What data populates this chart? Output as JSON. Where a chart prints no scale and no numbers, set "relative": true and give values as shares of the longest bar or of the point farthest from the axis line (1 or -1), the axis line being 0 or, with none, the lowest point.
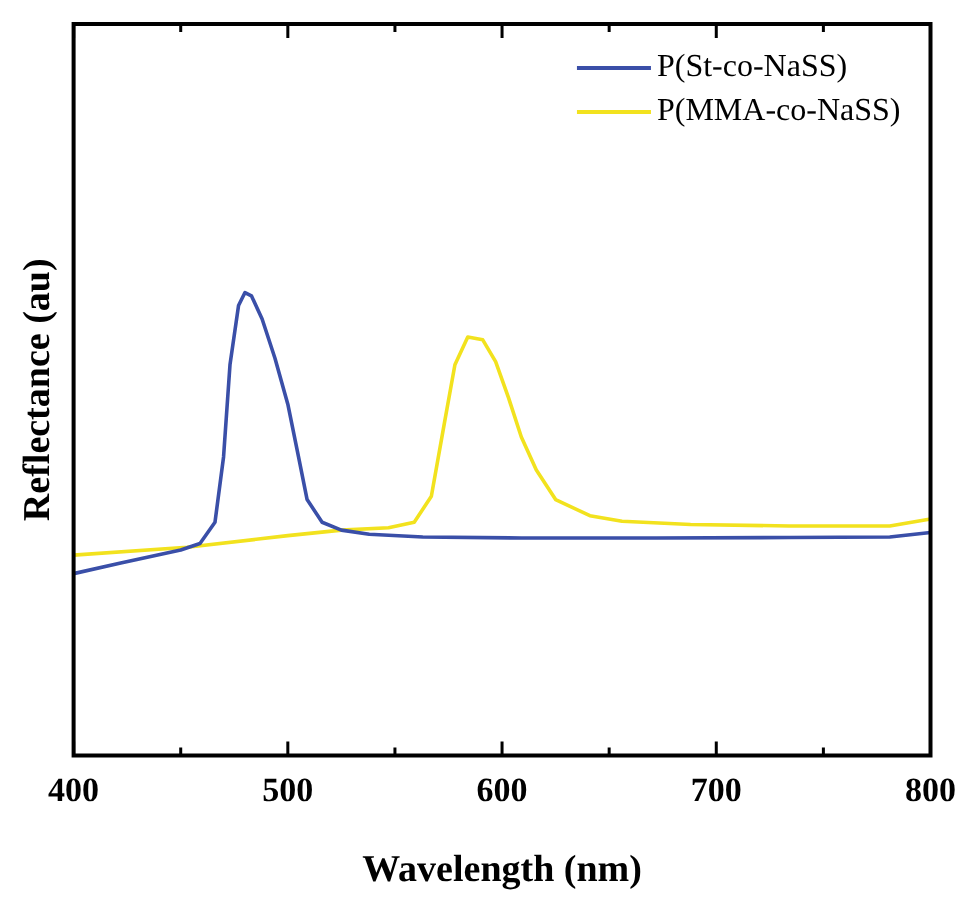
{
  "chart_data": {
    "type": "line",
    "xlabel": "Wavelength (nm)",
    "ylabel": "Reflectance (au)",
    "relative": true,
    "legend": "top right",
    "grid": false,
    "marker": "none",
    "line_style": "solid",
    "xlim": [
      400,
      800
    ],
    "xticks": [
      400,
      {
        "value": 450,
        "label": null
      },
      500,
      {
        "value": 550,
        "label": null
      },
      600,
      {
        "value": 650,
        "label": null
      },
      700,
      {
        "value": 750,
        "label": null
      },
      800
    ],
    "series": [
      {
        "name": "P(St-co-NaSS)",
        "color": "#3a4fa8",
        "x": [
          400,
          422,
          450,
          459,
          466,
          470,
          473,
          477,
          480,
          483,
          488,
          494,
          500,
          505,
          509,
          516,
          525,
          538,
          563,
          609,
          672,
          734,
          781,
          800
        ],
        "values": [
          0.393,
          0.416,
          0.444,
          0.458,
          0.504,
          0.645,
          0.844,
          0.972,
          1,
          0.993,
          0.943,
          0.858,
          0.759,
          0.645,
          0.553,
          0.504,
          0.487,
          0.478,
          0.472,
          0.47,
          0.47,
          0.471,
          0.472,
          0.482
        ]
      },
      {
        "name": "P(MMA-co-NaSS)",
        "color": "#f2e21e",
        "x": [
          400,
          453,
          500,
          525,
          547,
          559,
          567,
          573,
          578,
          584,
          591,
          597,
          603,
          609,
          616,
          625,
          641,
          656,
          688,
          734,
          781,
          800
        ],
        "values": [
          0.433,
          0.45,
          0.475,
          0.487,
          0.492,
          0.504,
          0.56,
          0.716,
          0.844,
          0.904,
          0.898,
          0.851,
          0.773,
          0.688,
          0.617,
          0.553,
          0.518,
          0.506,
          0.499,
          0.496,
          0.496,
          0.511
        ]
      }
    ]
  }
}
